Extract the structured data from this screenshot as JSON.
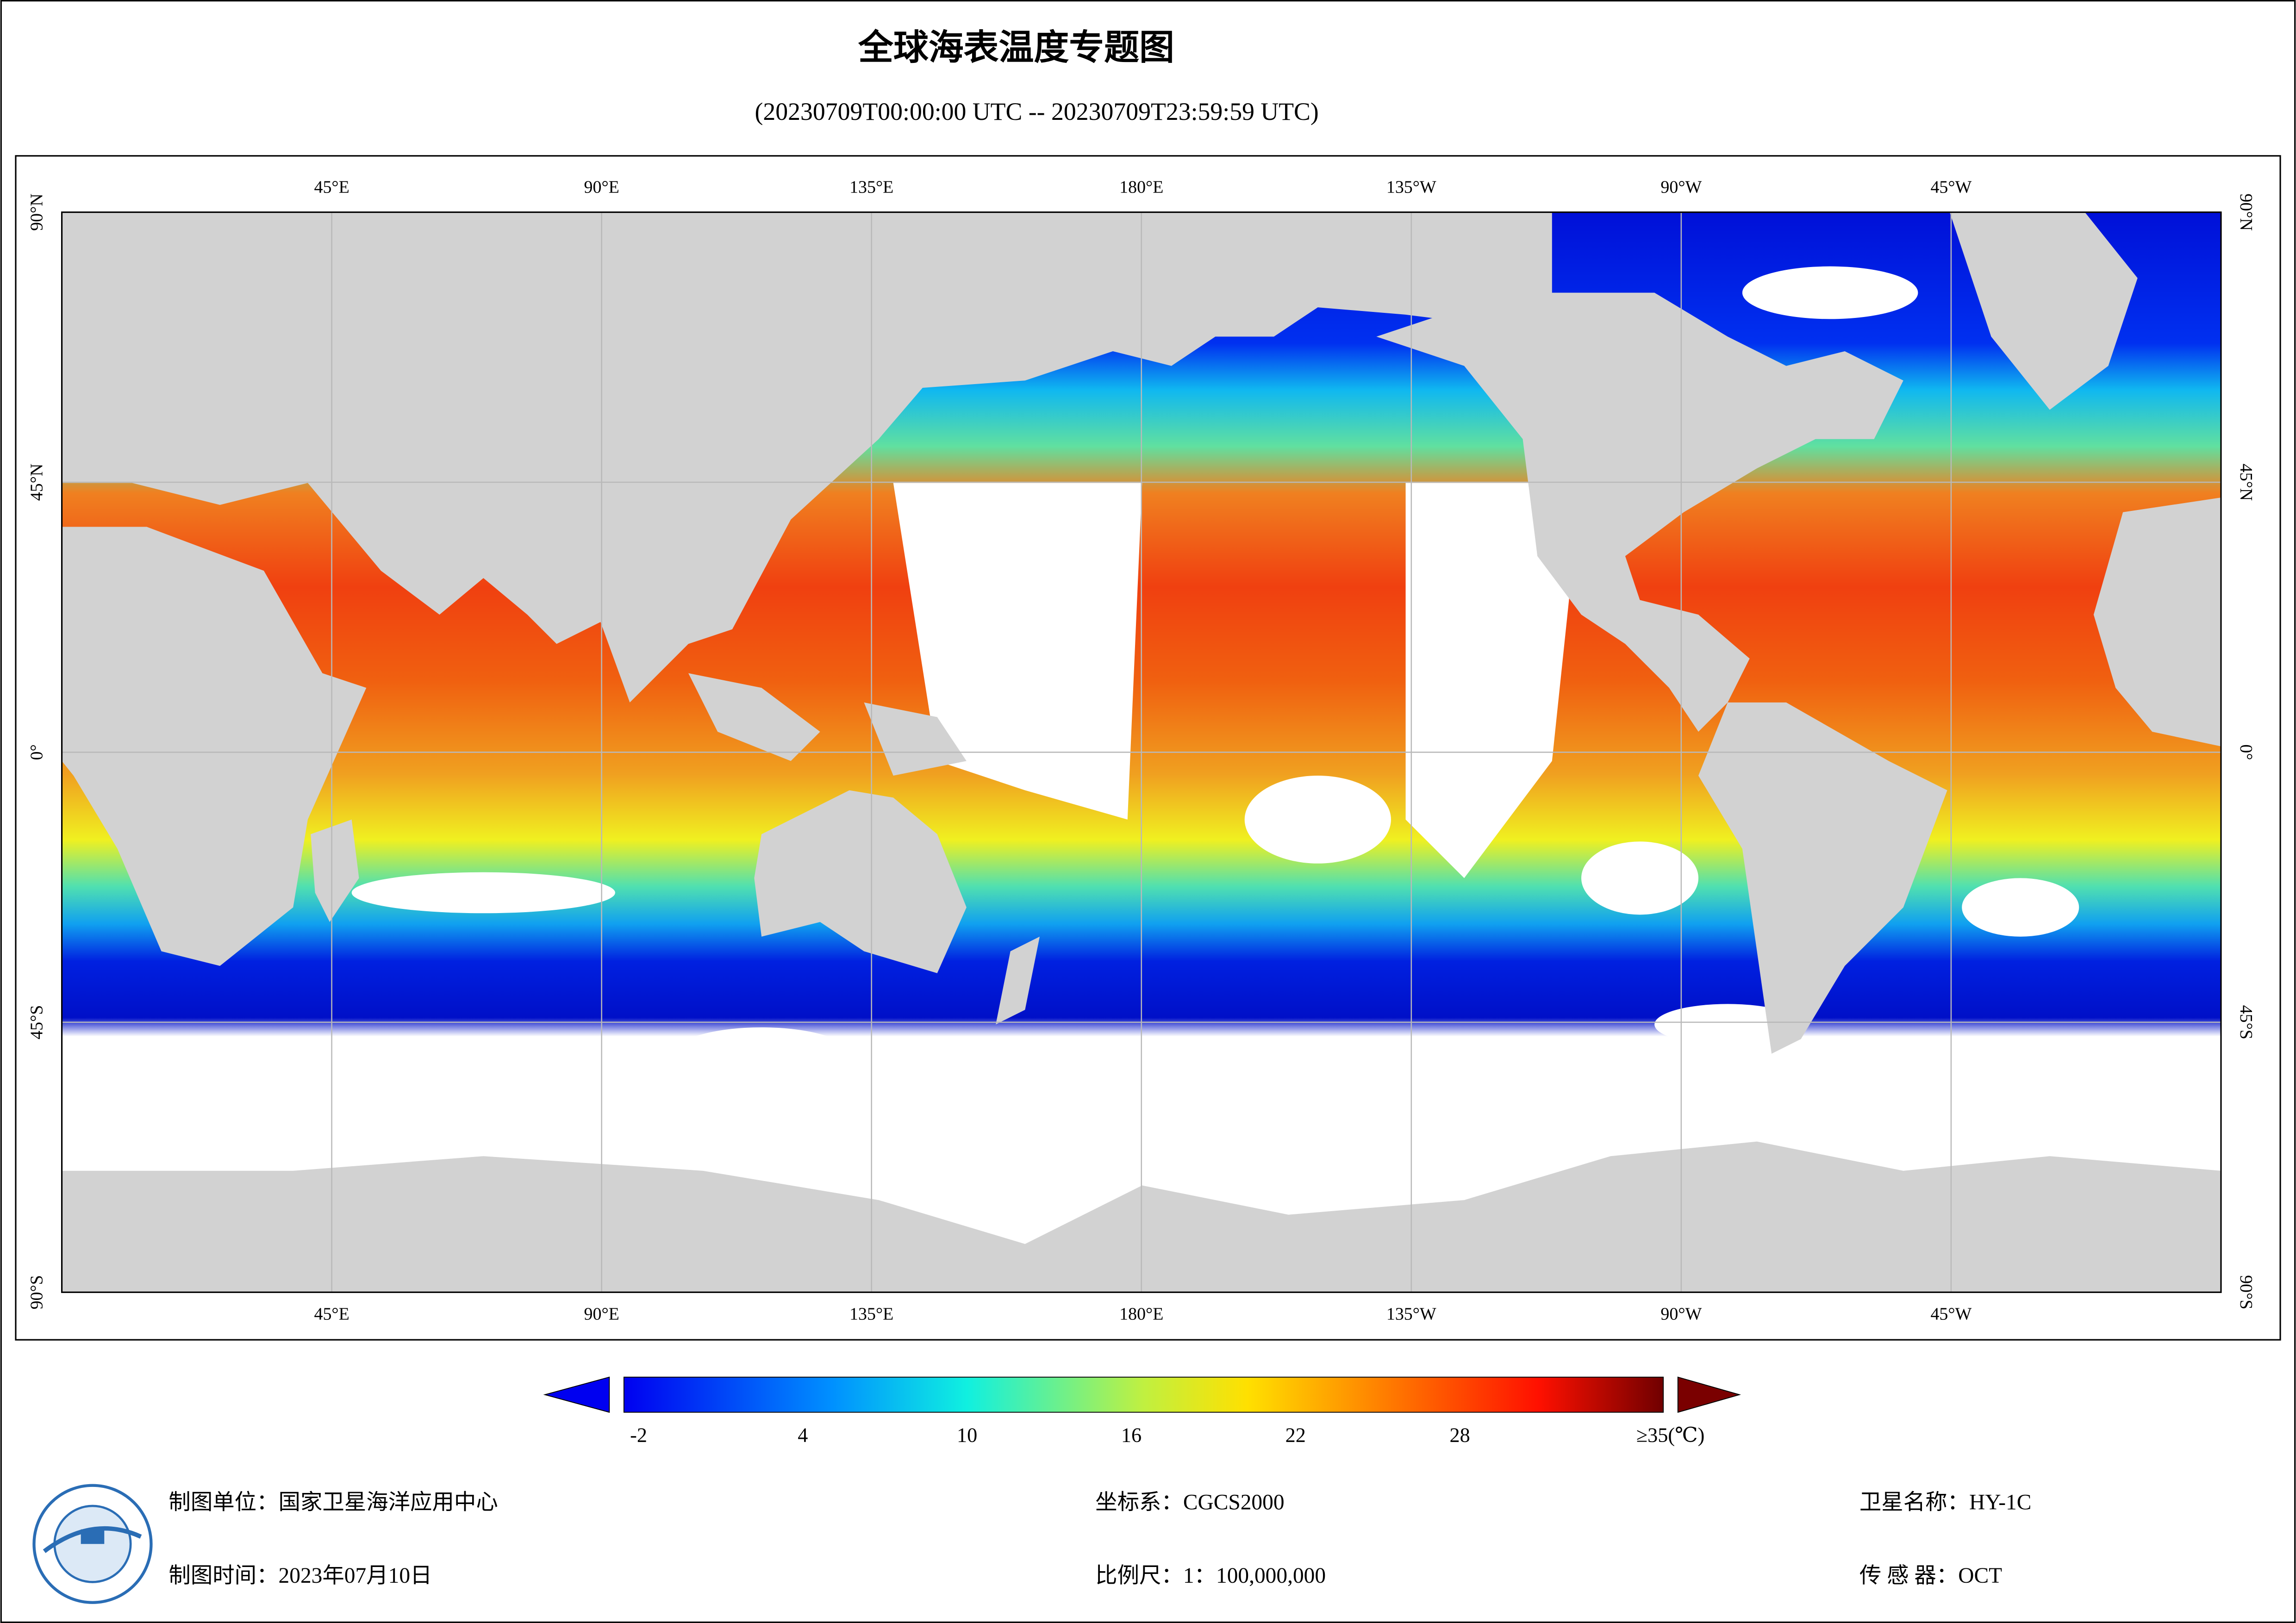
{
  "title": "全球海表温度专题图",
  "subtitle": "(20230709T00:00:00 UTC -- 20230709T23:59:59 UTC)",
  "map": {
    "lon_labels": [
      "45°E",
      "90°E",
      "135°E",
      "180°E",
      "135°W",
      "90°W",
      "45°W"
    ],
    "lat_labels": [
      "90°N",
      "45°N",
      "0°",
      "45°S",
      "90°S"
    ]
  },
  "colorbar": {
    "ticks": [
      -2,
      4,
      10,
      16,
      22,
      28,
      {
        "value": 35,
        "label": "≥35(℃)"
      }
    ]
  },
  "footer": {
    "unit": "制图单位：国家卫星海洋应用中心",
    "crs": "坐标系：CGCS2000",
    "satellite": "卫星名称：HY-1C",
    "date": "制图时间：2023年07月10日",
    "scale": "比例尺：1：100,000,000",
    "sensor": "传 感 器：OCT"
  }
}
